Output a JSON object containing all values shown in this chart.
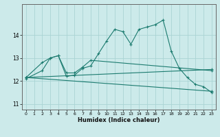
{
  "title": "",
  "xlabel": "Humidex (Indice chaleur)",
  "bg_color": "#cceaea",
  "grid_color": "#aad4d4",
  "line_color": "#1a7a6e",
  "xlim": [
    -0.5,
    23.5
  ],
  "ylim": [
    10.75,
    15.35
  ],
  "yticks": [
    11,
    12,
    13,
    14
  ],
  "xticks": [
    0,
    1,
    2,
    3,
    4,
    5,
    6,
    7,
    8,
    9,
    10,
    11,
    12,
    13,
    14,
    15,
    16,
    17,
    18,
    19,
    20,
    21,
    22,
    23
  ],
  "series": [
    {
      "x": [
        0,
        2,
        3,
        4,
        5,
        6,
        7,
        8,
        9,
        10,
        11,
        12,
        13,
        14,
        15,
        16,
        17,
        18,
        19,
        20,
        21,
        22,
        23
      ],
      "y": [
        12.1,
        12.45,
        13.0,
        13.1,
        12.2,
        12.25,
        12.55,
        12.65,
        13.2,
        13.75,
        14.25,
        14.15,
        13.6,
        14.25,
        14.35,
        14.45,
        14.65,
        13.3,
        12.55,
        12.15,
        11.85,
        11.75,
        11.5
      ]
    },
    {
      "x": [
        0,
        2,
        3,
        4,
        5,
        6,
        7,
        8,
        23
      ],
      "y": [
        12.15,
        12.8,
        13.0,
        13.1,
        12.35,
        12.35,
        12.6,
        12.9,
        12.45
      ]
    },
    {
      "x": [
        0,
        23
      ],
      "y": [
        12.15,
        12.5
      ]
    },
    {
      "x": [
        0,
        23
      ],
      "y": [
        12.15,
        11.55
      ]
    }
  ]
}
